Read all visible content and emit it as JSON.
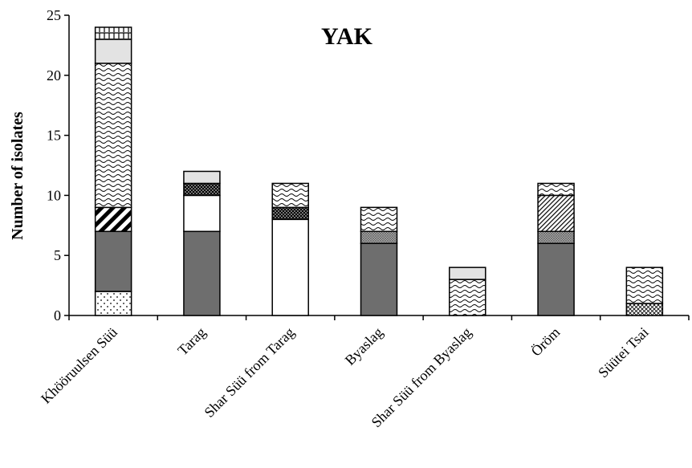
{
  "chart_data": {
    "type": "bar",
    "stacked": true,
    "title": "YAK",
    "xlabel": "",
    "ylabel": "Number of isolates",
    "ylim": [
      0,
      25
    ],
    "yticks": [
      0,
      5,
      10,
      15,
      20,
      25
    ],
    "grid": false,
    "legend": "none",
    "categories": [
      "Khööruulsen Süü",
      "Tarag",
      "Shar Süü from Tarag",
      "Byaslag",
      "Shar Süü from Byaslag",
      "Öröm",
      "Süütei Tsai"
    ],
    "series": [
      {
        "pattern": "dots",
        "values": [
          2,
          0,
          0,
          0,
          0,
          0,
          0
        ]
      },
      {
        "pattern": "dark-gray",
        "values": [
          5,
          7,
          0,
          6,
          0,
          6,
          0
        ]
      },
      {
        "pattern": "white",
        "values": [
          0,
          3,
          8,
          0,
          0,
          0,
          0
        ]
      },
      {
        "pattern": "crosshatch",
        "values": [
          0,
          0,
          0,
          1,
          0,
          1,
          0
        ]
      },
      {
        "pattern": "diagonal-cross",
        "values": [
          0,
          0,
          0,
          0,
          0,
          0,
          1
        ]
      },
      {
        "pattern": "dense-dots",
        "values": [
          0,
          1,
          1,
          0,
          0,
          0,
          0
        ]
      },
      {
        "pattern": "bold-diagonal",
        "values": [
          2,
          0,
          0,
          0,
          0,
          0,
          0
        ]
      },
      {
        "pattern": "fine-diagonal",
        "values": [
          0,
          0,
          0,
          0,
          0,
          3,
          0
        ]
      },
      {
        "pattern": "wave",
        "values": [
          12,
          0,
          2,
          2,
          3,
          1,
          3
        ]
      },
      {
        "pattern": "light-gray",
        "values": [
          2,
          1,
          0,
          0,
          1,
          0,
          0
        ]
      },
      {
        "pattern": "brick",
        "values": [
          1,
          0,
          0,
          0,
          0,
          0,
          0
        ]
      }
    ]
  }
}
